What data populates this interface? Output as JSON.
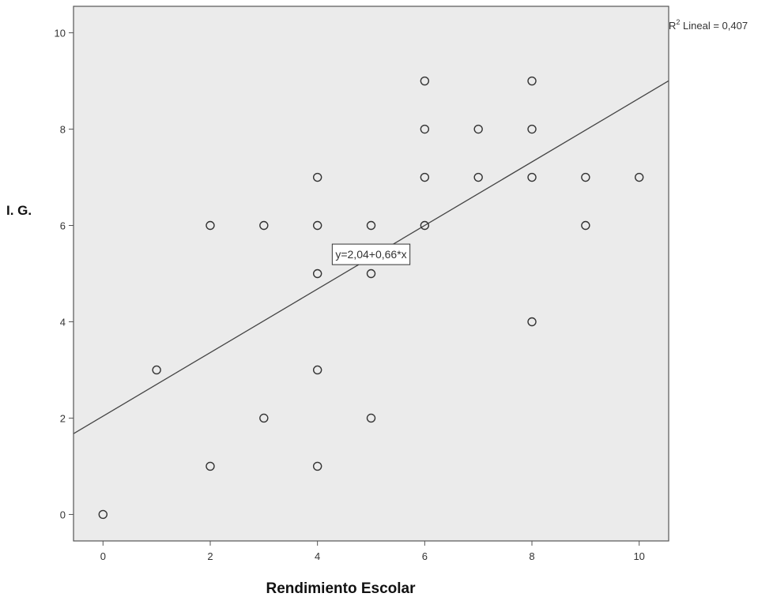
{
  "chart_data": {
    "type": "scatter",
    "xlabel": "Rendimiento Escolar",
    "ylabel": "I. G.",
    "xlim": [
      -0.55,
      10.55
    ],
    "ylim": [
      -0.55,
      10.55
    ],
    "x_ticks": [
      "0",
      "2",
      "4",
      "6",
      "8",
      "10"
    ],
    "y_ticks": [
      "0",
      "2",
      "4",
      "6",
      "8",
      "10"
    ],
    "grid": false,
    "plot_background": "#ebebeb",
    "marker_color": "#333333",
    "line_color": "#444444",
    "fit_line": {
      "intercept": 2.04,
      "slope": 0.66
    },
    "equation_label": "y=2,04+0,66*x",
    "equation_anchor": {
      "x": 5,
      "y": 5.4
    },
    "r2_label": {
      "prefix": "R",
      "superscript": "2",
      "text": " Lineal = 0,407"
    },
    "points": [
      {
        "x": 0,
        "y": 0
      },
      {
        "x": 1,
        "y": 3
      },
      {
        "x": 2,
        "y": 1
      },
      {
        "x": 2,
        "y": 6
      },
      {
        "x": 3,
        "y": 2
      },
      {
        "x": 3,
        "y": 6
      },
      {
        "x": 4,
        "y": 1
      },
      {
        "x": 4,
        "y": 3
      },
      {
        "x": 4,
        "y": 5
      },
      {
        "x": 4,
        "y": 6
      },
      {
        "x": 4,
        "y": 7
      },
      {
        "x": 5,
        "y": 2
      },
      {
        "x": 5,
        "y": 5
      },
      {
        "x": 5,
        "y": 6
      },
      {
        "x": 6,
        "y": 6
      },
      {
        "x": 6,
        "y": 7
      },
      {
        "x": 6,
        "y": 8
      },
      {
        "x": 6,
        "y": 9
      },
      {
        "x": 7,
        "y": 7
      },
      {
        "x": 7,
        "y": 8
      },
      {
        "x": 8,
        "y": 4
      },
      {
        "x": 8,
        "y": 7
      },
      {
        "x": 8,
        "y": 8
      },
      {
        "x": 8,
        "y": 9
      },
      {
        "x": 9,
        "y": 6
      },
      {
        "x": 9,
        "y": 7
      },
      {
        "x": 10,
        "y": 7
      }
    ]
  }
}
